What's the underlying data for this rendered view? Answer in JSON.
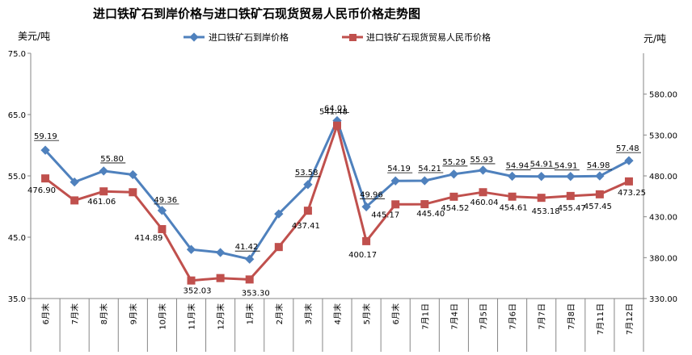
{
  "chart_data": {
    "type": "line",
    "title": "进口铁矿石到岸价格与进口铁矿石现货贸易人民币价格走势图",
    "left_unit": "美元/吨",
    "right_unit": "元/吨",
    "categories": [
      "6月末",
      "7月末",
      "8月末",
      "9月末",
      "10月末",
      "11月末",
      "12月末",
      "1月末",
      "2月末",
      "3月末",
      "4月末",
      "5月末",
      "6月末",
      "7月1日",
      "7月4日",
      "7月5日",
      "7月6日",
      "7月7日",
      "7月8日",
      "7月11日",
      "7月12日"
    ],
    "y_left": {
      "min": 35,
      "max": 75,
      "ticks": [
        "35.0",
        "45.0",
        "55.0",
        "65.0",
        "75.0"
      ]
    },
    "y_right": {
      "min": 330,
      "max": 630,
      "ticks": [
        "330.00",
        "380.00",
        "430.00",
        "480.00",
        "530.00",
        "580.00"
      ]
    },
    "series": [
      {
        "name": "进口铁矿石到岸价格",
        "axis": "left",
        "color": "#4f81bd",
        "marker": "diamond",
        "values": [
          59.19,
          54.0,
          55.8,
          55.2,
          49.36,
          43.0,
          42.5,
          41.42,
          48.8,
          53.58,
          64.01,
          49.96,
          54.19,
          54.21,
          55.29,
          55.93,
          54.94,
          54.91,
          54.91,
          54.98,
          57.48
        ],
        "labels": [
          "59.19",
          "",
          "55.80",
          "",
          "49.36",
          "",
          "",
          "41.42",
          "",
          "53.58",
          "64.01",
          "49.96",
          "54.19",
          "54.21",
          "55.29",
          "55.93",
          "54.94",
          "54.91",
          "54.91",
          "54.98",
          "57.48"
        ]
      },
      {
        "name": "进口铁矿石现货贸易人民币价格",
        "axis": "right",
        "color": "#c0504d",
        "marker": "square",
        "values": [
          476.9,
          450.0,
          461.06,
          460.0,
          414.89,
          352.03,
          355.0,
          353.3,
          393.0,
          437.41,
          541.48,
          400.17,
          445.17,
          445.4,
          454.52,
          460.04,
          454.61,
          453.18,
          455.47,
          457.45,
          473.25
        ],
        "labels": [
          "476.90",
          "",
          "461.06",
          "",
          "414.89",
          "352.03",
          "",
          "353.30",
          "",
          "437.41",
          "541.48",
          "400.17",
          "445.17",
          "445.40",
          "454.52",
          "460.04",
          "454.61",
          "453.18",
          "455.47",
          "457.45",
          "473.25"
        ]
      }
    ]
  }
}
